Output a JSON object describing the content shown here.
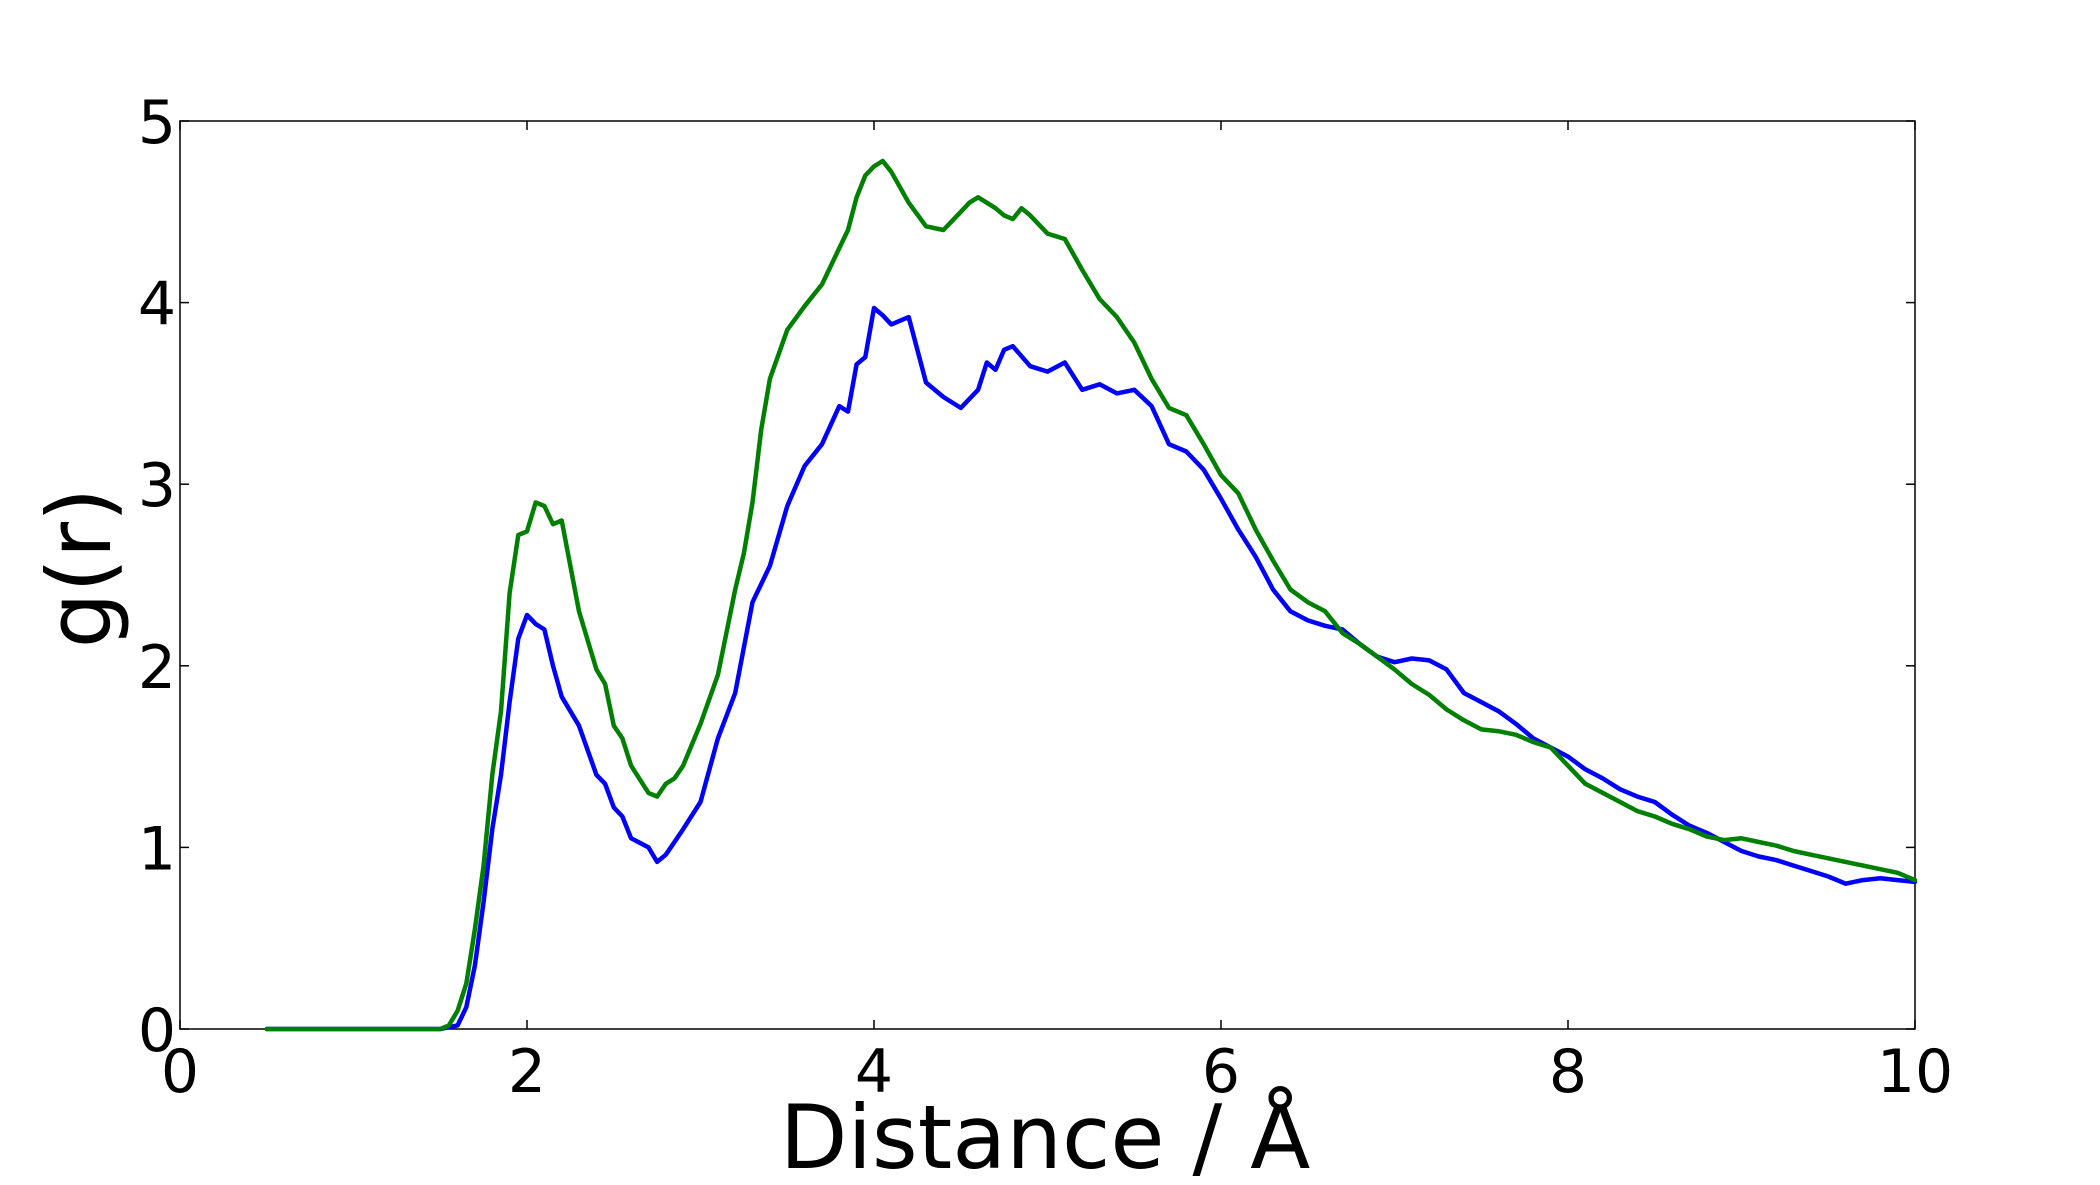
{
  "chart_data": {
    "type": "line",
    "title": "",
    "xlabel": "Distance / Å",
    "ylabel": "g(r)",
    "xlim": [
      0,
      10
    ],
    "ylim": [
      0,
      5
    ],
    "xticks": [
      0,
      2,
      4,
      6,
      8,
      10
    ],
    "yticks": [
      0,
      1,
      2,
      3,
      4,
      5
    ],
    "xtick_labels": [
      "0",
      "2",
      "4",
      "6",
      "8",
      "10"
    ],
    "ytick_labels": [
      "0",
      "1",
      "2",
      "3",
      "4",
      "5"
    ],
    "grid": false,
    "legend": "none",
    "series": [
      {
        "color": "#0000ff",
        "x": [
          0.5,
          1.0,
          1.5,
          1.6,
          1.65,
          1.7,
          1.75,
          1.8,
          1.85,
          1.9,
          1.95,
          2.0,
          2.05,
          2.1,
          2.15,
          2.2,
          2.3,
          2.4,
          2.45,
          2.5,
          2.55,
          2.6,
          2.7,
          2.75,
          2.8,
          2.85,
          2.9,
          3.0,
          3.1,
          3.2,
          3.3,
          3.4,
          3.5,
          3.6,
          3.7,
          3.8,
          3.85,
          3.9,
          3.95,
          4.0,
          4.05,
          4.1,
          4.2,
          4.3,
          4.4,
          4.5,
          4.6,
          4.65,
          4.7,
          4.75,
          4.8,
          4.9,
          5.0,
          5.1,
          5.2,
          5.3,
          5.4,
          5.5,
          5.6,
          5.7,
          5.8,
          5.9,
          6.0,
          6.1,
          6.2,
          6.3,
          6.4,
          6.5,
          6.6,
          6.7,
          6.8,
          6.9,
          7.0,
          7.1,
          7.2,
          7.3,
          7.4,
          7.5,
          7.6,
          7.7,
          7.8,
          7.9,
          8.0,
          8.1,
          8.2,
          8.3,
          8.4,
          8.5,
          8.6,
          8.7,
          8.8,
          8.9,
          9.0,
          9.1,
          9.2,
          9.3,
          9.4,
          9.5,
          9.6,
          9.7,
          9.8,
          9.9,
          10.0
        ],
        "values": [
          0,
          0,
          0,
          0.02,
          0.12,
          0.35,
          0.7,
          1.1,
          1.4,
          1.8,
          2.15,
          2.28,
          2.23,
          2.2,
          2.0,
          1.83,
          1.67,
          1.4,
          1.35,
          1.22,
          1.17,
          1.05,
          1.0,
          0.92,
          0.96,
          1.03,
          1.1,
          1.25,
          1.6,
          1.85,
          2.35,
          2.55,
          2.88,
          3.1,
          3.22,
          3.43,
          3.4,
          3.66,
          3.7,
          3.97,
          3.93,
          3.88,
          3.92,
          3.56,
          3.48,
          3.42,
          3.52,
          3.67,
          3.63,
          3.74,
          3.76,
          3.65,
          3.62,
          3.67,
          3.52,
          3.55,
          3.5,
          3.52,
          3.43,
          3.22,
          3.18,
          3.08,
          2.92,
          2.75,
          2.6,
          2.42,
          2.3,
          2.25,
          2.22,
          2.2,
          2.12,
          2.05,
          2.02,
          2.04,
          2.03,
          1.98,
          1.85,
          1.8,
          1.75,
          1.68,
          1.6,
          1.55,
          1.5,
          1.43,
          1.38,
          1.32,
          1.28,
          1.25,
          1.18,
          1.12,
          1.08,
          1.03,
          0.98,
          0.95,
          0.93,
          0.9,
          0.87,
          0.84,
          0.8,
          0.82,
          0.83,
          0.82,
          0.81
        ]
      },
      {
        "color": "#008000",
        "x": [
          0.5,
          1.0,
          1.5,
          1.55,
          1.6,
          1.65,
          1.7,
          1.75,
          1.8,
          1.85,
          1.9,
          1.95,
          2.0,
          2.05,
          2.1,
          2.15,
          2.2,
          2.3,
          2.4,
          2.45,
          2.5,
          2.55,
          2.6,
          2.7,
          2.75,
          2.8,
          2.85,
          2.9,
          3.0,
          3.1,
          3.2,
          3.25,
          3.3,
          3.35,
          3.4,
          3.5,
          3.6,
          3.7,
          3.8,
          3.85,
          3.9,
          3.95,
          4.0,
          4.05,
          4.1,
          4.2,
          4.3,
          4.4,
          4.45,
          4.5,
          4.55,
          4.6,
          4.65,
          4.7,
          4.75,
          4.8,
          4.85,
          4.9,
          5.0,
          5.1,
          5.2,
          5.3,
          5.4,
          5.5,
          5.6,
          5.7,
          5.8,
          5.9,
          6.0,
          6.1,
          6.2,
          6.3,
          6.4,
          6.5,
          6.6,
          6.7,
          6.8,
          6.9,
          7.0,
          7.1,
          7.2,
          7.3,
          7.4,
          7.5,
          7.6,
          7.7,
          7.8,
          7.9,
          8.0,
          8.1,
          8.2,
          8.3,
          8.4,
          8.5,
          8.6,
          8.7,
          8.8,
          8.9,
          9.0,
          9.1,
          9.2,
          9.3,
          9.4,
          9.5,
          9.6,
          9.7,
          9.8,
          9.9,
          10.0
        ],
        "values": [
          0,
          0,
          0,
          0.02,
          0.1,
          0.25,
          0.55,
          0.9,
          1.4,
          1.75,
          2.4,
          2.72,
          2.74,
          2.9,
          2.88,
          2.78,
          2.8,
          2.3,
          1.98,
          1.9,
          1.67,
          1.6,
          1.45,
          1.3,
          1.28,
          1.35,
          1.38,
          1.45,
          1.68,
          1.95,
          2.42,
          2.62,
          2.9,
          3.3,
          3.58,
          3.85,
          3.98,
          4.1,
          4.3,
          4.4,
          4.58,
          4.7,
          4.75,
          4.78,
          4.72,
          4.55,
          4.42,
          4.4,
          4.45,
          4.5,
          4.55,
          4.58,
          4.55,
          4.52,
          4.48,
          4.46,
          4.52,
          4.48,
          4.38,
          4.35,
          4.18,
          4.02,
          3.92,
          3.78,
          3.58,
          3.42,
          3.38,
          3.22,
          3.05,
          2.95,
          2.75,
          2.58,
          2.42,
          2.35,
          2.3,
          2.18,
          2.12,
          2.05,
          1.98,
          1.9,
          1.84,
          1.76,
          1.7,
          1.65,
          1.64,
          1.62,
          1.58,
          1.55,
          1.45,
          1.35,
          1.3,
          1.25,
          1.2,
          1.17,
          1.13,
          1.1,
          1.06,
          1.04,
          1.05,
          1.03,
          1.01,
          0.98,
          0.96,
          0.94,
          0.92,
          0.9,
          0.88,
          0.86,
          0.82
        ]
      }
    ]
  }
}
